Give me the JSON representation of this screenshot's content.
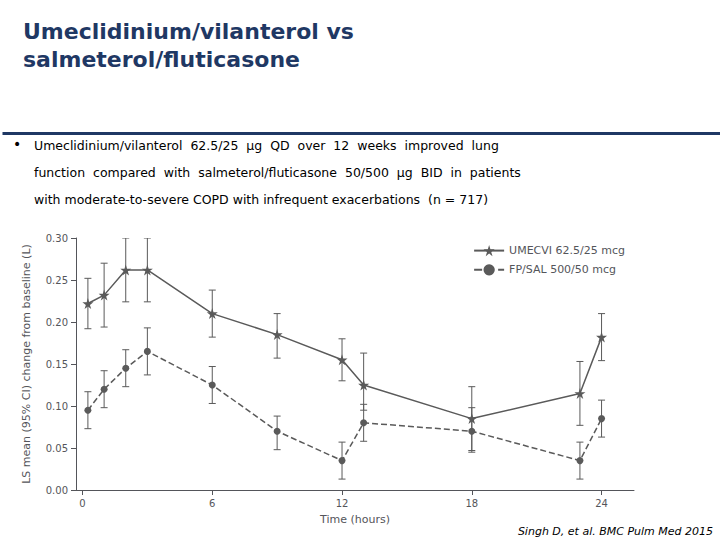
{
  "chart_data": {
    "type": "line",
    "title": "Umeclidinium/vilanterol vs\nsalmeterol/fluticasone",
    "subtitle": [
      "Umeclidinium/vilanterol  62.5/25  μg  QD  over  12  weeks  improved  lung",
      "function  compared  with  salmeterol/fluticasone  50/500  μg  BID  in  patients",
      "with moderate-to-severe COPD with infrequent exacerbations  (n = 717)"
    ],
    "annotations": [
      "•",
      "Singh D, et al. BMC Pulm Med 2015"
    ],
    "xlabel": "Time (hours)",
    "ylabel": "LS mean (95% CI) change from baseline (L)",
    "x": [
      0.25,
      1,
      2,
      3,
      6,
      9,
      12,
      13,
      18,
      23,
      24
    ],
    "series": [
      {
        "name": "UMECVI 62.5/25 mcg",
        "color": "#5a5a5a",
        "marker": "star",
        "line_style": "solid",
        "values": [
          0.222,
          0.232,
          0.262,
          0.262,
          0.21,
          0.185,
          0.155,
          0.125,
          0.085,
          0.115,
          0.182
        ],
        "yerr_lo": [
          0.03,
          0.038,
          0.038,
          0.038,
          0.028,
          0.028,
          0.025,
          0.03,
          0.038,
          0.038,
          0.028
        ],
        "yerr_hi": [
          0.03,
          0.038,
          0.038,
          0.038,
          0.028,
          0.025,
          0.025,
          0.038,
          0.038,
          0.038,
          0.028
        ]
      },
      {
        "name": "FP/SAL 500/50 mcg",
        "color": "#5a5a5a",
        "marker": "circle",
        "line_style": "dashed",
        "values": [
          0.095,
          0.12,
          0.145,
          0.165,
          0.125,
          0.07,
          0.035,
          0.08,
          0.07,
          0.035,
          0.085
        ],
        "yerr_lo": [
          0.022,
          0.022,
          0.022,
          0.028,
          0.022,
          0.022,
          0.022,
          0.022,
          0.025,
          0.022,
          0.022
        ],
        "yerr_hi": [
          0.022,
          0.022,
          0.022,
          0.028,
          0.022,
          0.018,
          0.022,
          0.022,
          0.028,
          0.022,
          0.022
        ]
      }
    ],
    "xlim": [
      -0.3,
      25.5
    ],
    "xticks": [
      0,
      6,
      12,
      18,
      24
    ],
    "ylim": [
      0.0,
      0.3
    ],
    "yticks": [
      {
        "value": 0.0,
        "label": "0.00"
      },
      0.05,
      {
        "value": 0.1,
        "label": "0.10"
      },
      0.15,
      {
        "value": 0.2,
        "label": "0.20"
      },
      0.25,
      {
        "value": 0.3,
        "label": "0.30"
      }
    ],
    "grid": false,
    "legend": "upper right"
  }
}
